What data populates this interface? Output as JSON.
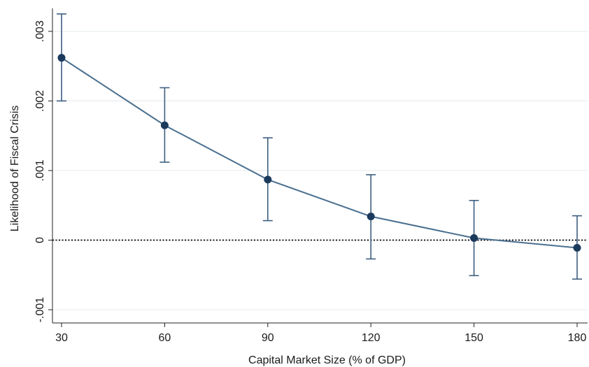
{
  "chart_data": {
    "type": "line",
    "xlabel": "Capital Market Size (% of GDP)",
    "ylabel": "Likelihood of Fiscal Crisis",
    "x": [
      30,
      60,
      90,
      120,
      150,
      180
    ],
    "y": [
      0.00262,
      0.00165,
      0.00087,
      0.00034,
      3e-05,
      -0.00011
    ],
    "ci_low": [
      0.002,
      0.00112,
      0.00028,
      -0.00027,
      -0.00051,
      -0.00056
    ],
    "ci_high": [
      0.00325,
      0.00219,
      0.00147,
      0.00094,
      0.00057,
      0.00035
    ],
    "xticks": [
      30,
      60,
      90,
      120,
      150,
      180
    ],
    "xtick_labels": [
      "30",
      "60",
      "90",
      "120",
      "150",
      "180"
    ],
    "yticks": [
      -0.001,
      0,
      0.001,
      0.002,
      0.003
    ],
    "ytick_labels": [
      "-.001",
      "0",
      ".001",
      ".002",
      ".003"
    ],
    "xlim": [
      30,
      180
    ],
    "ylim": [
      -0.00115,
      0.00335
    ],
    "reference_line": 0,
    "grid": true,
    "colors": {
      "series": "#4a6f8f",
      "marker": "#1b3a5c",
      "errorbar": "#3e5f80",
      "grid": "#e8eef2",
      "axis": "#222222",
      "reference": "#000000"
    }
  }
}
